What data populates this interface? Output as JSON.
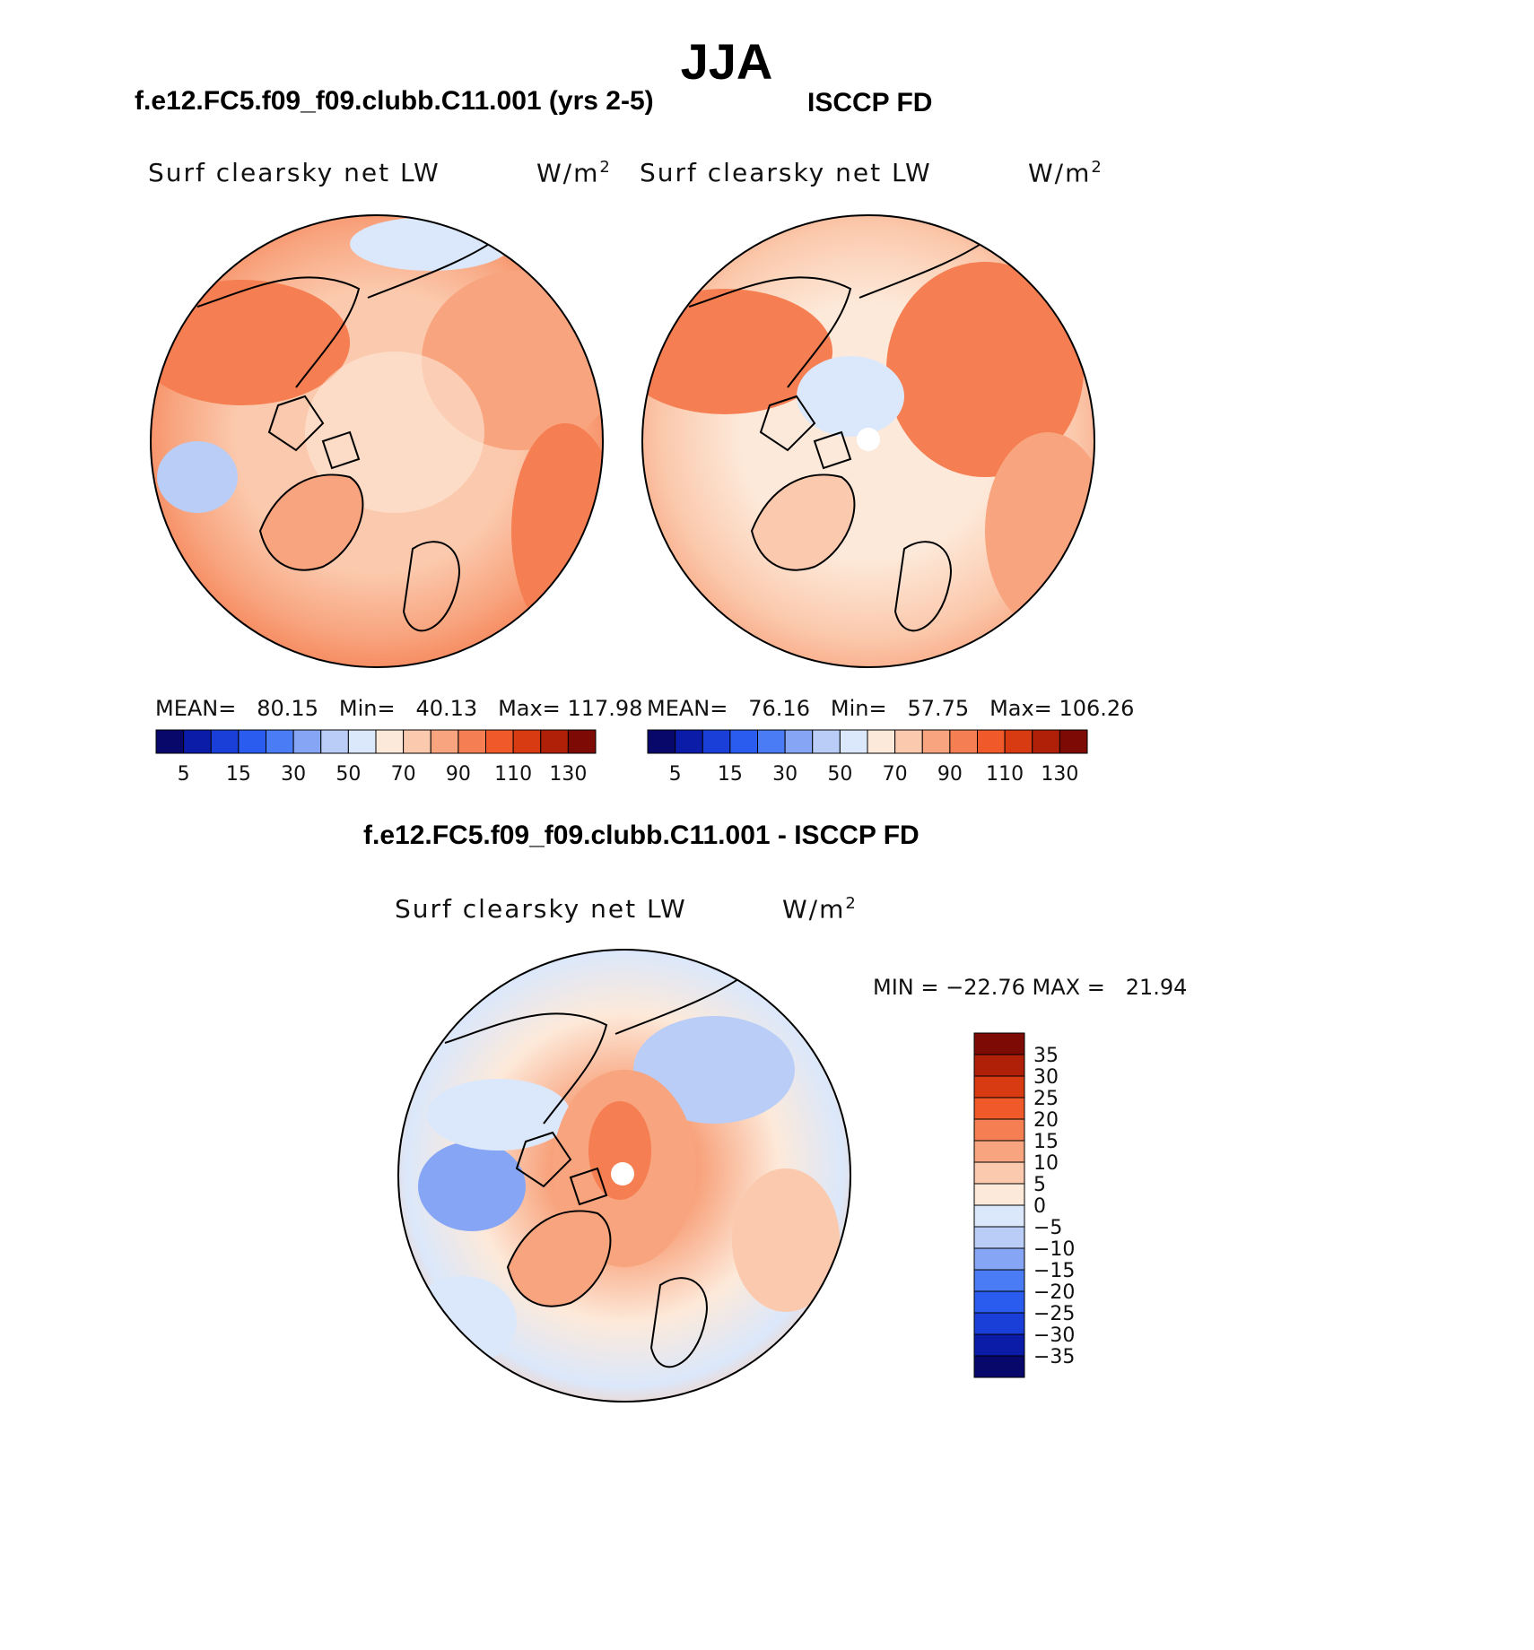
{
  "page_title": "JJA",
  "panels": [
    {
      "subtitle": "f.e12.FC5.f09_f09.clubb.C11.001 (yrs 2-5)",
      "variable": "Surf clearsky net LW",
      "units_base": "W/m",
      "units_exp": "2",
      "mean_label": "MEAN=",
      "mean": "80.15",
      "min_label": "Min=",
      "min": "40.13",
      "max_label": "Max=",
      "max": "117.98"
    },
    {
      "subtitle": "ISCCP FD",
      "variable": "Surf clearsky net LW",
      "units_base": "W/m",
      "units_exp": "2",
      "mean_label": "MEAN=",
      "mean": "76.16",
      "min_label": "Min=",
      "min": "57.75",
      "max_label": "Max=",
      "max": "106.26"
    }
  ],
  "diff_panel": {
    "subtitle": "f.e12.FC5.f09_f09.clubb.C11.001 - ISCCP FD",
    "variable": "Surf clearsky net LW",
    "units_base": "W/m",
    "units_exp": "2",
    "minmax_text": "MIN = −22.76 MAX =   21.94"
  },
  "colorbar_horizontal": {
    "colors": [
      "#08086b",
      "#0a1ca8",
      "#1a3fd8",
      "#2a5cf0",
      "#4a7cf5",
      "#86a6f5",
      "#b9cdf7",
      "#dbe8fb",
      "#fde9d9",
      "#fbc9ad",
      "#f8a47e",
      "#f57e52",
      "#f05a2a",
      "#d83a12",
      "#b02008",
      "#7d0a05"
    ],
    "tick_labels": [
      "5",
      "15",
      "30",
      "50",
      "70",
      "90",
      "110",
      "130"
    ]
  },
  "colorbar_vertical": {
    "colors": [
      "#7d0a05",
      "#b02008",
      "#d83a12",
      "#f05a2a",
      "#f57e52",
      "#f8a47e",
      "#fbc9ad",
      "#fde9d9",
      "#dbe8fb",
      "#b9cdf7",
      "#86a6f5",
      "#4a7cf5",
      "#2a5cf0",
      "#1a3fd8",
      "#0a1ca8",
      "#08086b"
    ],
    "tick_labels": [
      "35",
      "30",
      "25",
      "20",
      "15",
      "10",
      "5",
      "0",
      "−5",
      "−10",
      "−15",
      "−20",
      "−25",
      "−30",
      "−35"
    ]
  }
}
